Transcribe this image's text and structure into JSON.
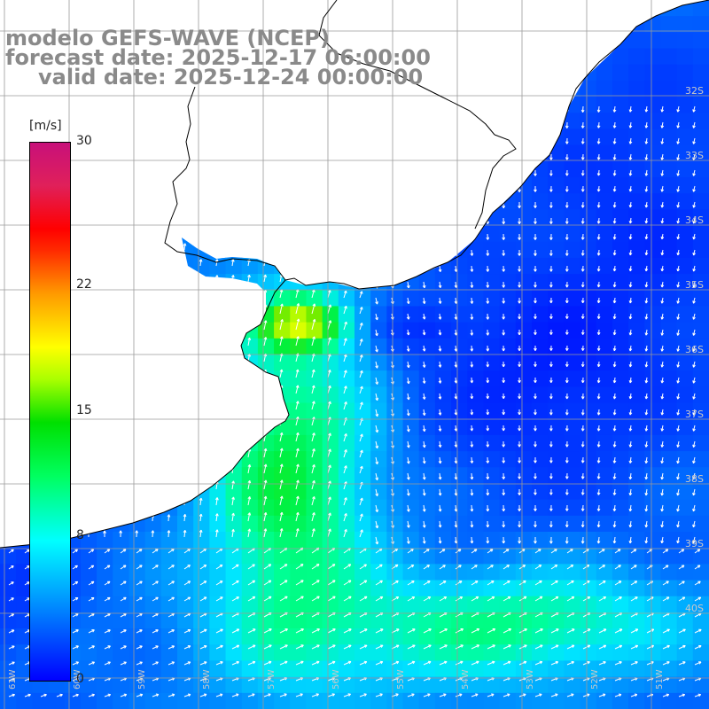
{
  "title": {
    "model": "modelo GEFS-WAVE (NCEP)",
    "forecast": "forecast date: 2025-12-17 06:00:00",
    "valid": "valid date: 2025-12-24 00:00:00"
  },
  "colorbar": {
    "unit": "[m/s]",
    "min": 0,
    "max": 30,
    "tick_labels": [
      "30",
      "22",
      "15",
      "8",
      "0"
    ],
    "tick_values": [
      30,
      22,
      15,
      8,
      0
    ]
  },
  "lat_labels": [
    "32S",
    "33S",
    "34S",
    "35S",
    "36S",
    "37S",
    "38S",
    "39S",
    "40S"
  ],
  "lon_labels": [
    "61W",
    "60W",
    "59W",
    "58W",
    "57W",
    "56W",
    "55W",
    "54W",
    "53W",
    "52W",
    "51W"
  ],
  "colors": {
    "land": "#ffffff",
    "grid": "#9a9a9a",
    "coast": "#000000",
    "arrow": "#ffffff",
    "title": "#8a8a8a"
  },
  "field": {
    "description_of_variable": "wind speed",
    "cols": 44,
    "rows": 44
  }
}
